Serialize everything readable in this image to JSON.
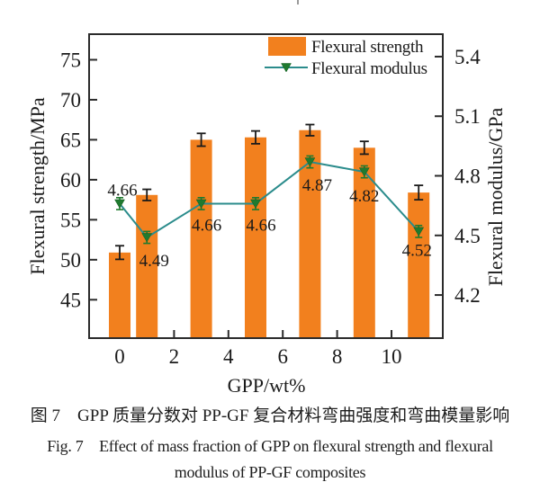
{
  "captions": {
    "zh": "图 7　GPP 质量分数对 PP-GF 复合材料弯曲强度和弯曲模量影响",
    "en_line1": "Fig. 7　Effect of mass fraction of GPP on flexural strength and flexural",
    "en_line2": "modulus of PP-GF composites"
  },
  "chart_data": {
    "type": "bar",
    "subtype": "dual-axis bar + line with error bars",
    "x": [
      0,
      1,
      3,
      5,
      7,
      9,
      11
    ],
    "x_ticks": [
      0,
      2,
      4,
      6,
      8,
      10
    ],
    "xlabel": "GPP/wt%",
    "xlim": [
      -1.13,
      11.9
    ],
    "series": [
      {
        "name": "Flexural strength",
        "type": "bar",
        "axis": "left",
        "color": "#F2801E",
        "error_color": "#1a1a1a",
        "values": [
          50.9,
          58.1,
          65.0,
          65.3,
          66.2,
          64.0,
          58.4
        ],
        "errors": [
          0.85,
          0.7,
          0.8,
          0.8,
          0.7,
          0.8,
          0.9
        ]
      },
      {
        "name": "Flexural modulus",
        "type": "line",
        "axis": "right",
        "line_color": "#2B8C8C",
        "marker": "triangle-down",
        "marker_color": "#1F7A2F",
        "values": [
          4.66,
          4.49,
          4.66,
          4.66,
          4.87,
          4.82,
          4.52
        ],
        "errors": [
          0.03,
          0.03,
          0.03,
          0.03,
          0.03,
          0.03,
          0.03
        ],
        "point_labels": [
          "4.66",
          "4.49",
          "4.66",
          "4.66",
          "4.87",
          "4.82",
          "4.52"
        ],
        "label_offsets": [
          [
            3,
            -9
          ],
          [
            8,
            32
          ],
          [
            6,
            30
          ],
          [
            6,
            30
          ],
          [
            8,
            32
          ],
          [
            0,
            33
          ],
          [
            -2,
            27
          ]
        ]
      }
    ],
    "left_axis": {
      "label": "Flexural strength/MPa",
      "ticks": [
        "45",
        "50",
        "55",
        "60",
        "65",
        "70",
        "75"
      ],
      "lim": [
        40.2,
        78.2
      ]
    },
    "right_axis": {
      "label": "Flexural modulus/GPa",
      "ticks": [
        "4.2",
        "4.5",
        "4.8",
        "5.1",
        "5.4"
      ],
      "lim": [
        3.983,
        5.513
      ]
    },
    "legend": {
      "position": "top-right-inside",
      "items": [
        {
          "label": "Flexural strength",
          "swatch": "bar"
        },
        {
          "label": "Flexural modulus",
          "swatch": "line-triangle"
        }
      ]
    },
    "grid": false,
    "frame_color": "#2b2b2b",
    "text_color": "#1a1a1a"
  }
}
